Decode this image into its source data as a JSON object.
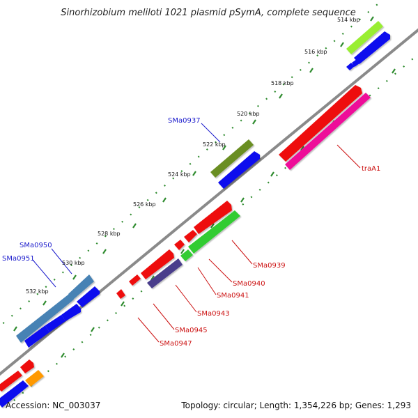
{
  "map": {
    "title": "Sinorhizobium meliloti 1021 plasmid pSymA, complete sequence",
    "accession": "Accession: NC_003037",
    "summary": "Topology: circular; Length: 1,354,226 bp; Genes: 1,293",
    "ticks": [
      "514 kbp",
      "516 kbp",
      "518 kbp",
      "520 kbp",
      "522 kbp",
      "524 kbp",
      "526 kbp",
      "528 kbp",
      "530 kbp",
      "532 kbp"
    ],
    "gene_labels": [
      {
        "text": "SMa0937",
        "color": "#1a1acc"
      },
      {
        "text": "SMa0950",
        "color": "#1a1acc"
      },
      {
        "text": "SMa0951",
        "color": "#1a1acc"
      },
      {
        "text": "traA1",
        "color": "#cc1111"
      },
      {
        "text": "SMa0939",
        "color": "#cc1111"
      },
      {
        "text": "SMa0940",
        "color": "#cc1111"
      },
      {
        "text": "SMa0941",
        "color": "#cc1111"
      },
      {
        "text": "SMa0943",
        "color": "#cc1111"
      },
      {
        "text": "SMa0945",
        "color": "#cc1111"
      },
      {
        "text": "SMa0947",
        "color": "#cc1111"
      }
    ],
    "colors": {
      "backbone": "#8a8a8a",
      "dots": "#2e8b2e",
      "forward": "#ee1111",
      "reverse": "#1111ee",
      "lime": "#99ee33",
      "olive": "#6b8e23",
      "magenta": "#ee1199",
      "green": "#33cc33",
      "slate": "#483d8b",
      "steel": "#4682b4",
      "orange": "#ff9900"
    }
  }
}
